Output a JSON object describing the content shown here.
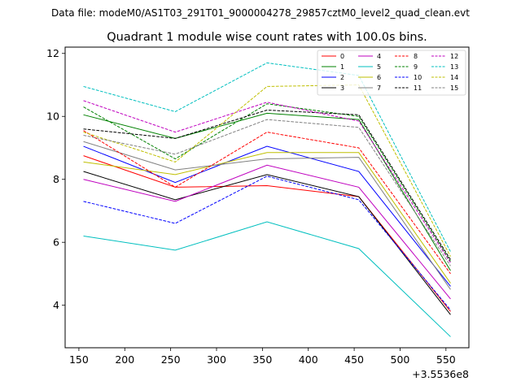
{
  "figure": {
    "suptitle": "Data file: modeM0/AS1T03_291T01_9000004278_29857cztM0_level2_quad_clean.evt"
  },
  "chart_data": {
    "type": "line",
    "title": "Quadrant 1 module wise count rates with 100.0s bins.",
    "xlabel": "",
    "ylabel": "",
    "x_offset_label": "+3.5536e8",
    "x": [
      155,
      255,
      355,
      455,
      555
    ],
    "xlim": [
      135,
      575
    ],
    "ylim": [
      2.65,
      12.2
    ],
    "xticks": [
      150,
      200,
      250,
      300,
      350,
      400,
      450,
      500,
      550
    ],
    "yticks": [
      4,
      6,
      8,
      10,
      12
    ],
    "grid": false,
    "legend_position": "top-right",
    "legend_columns": 4,
    "series": [
      {
        "name": "0",
        "color": "#ff0000",
        "dash": "solid",
        "values": [
          8.75,
          7.75,
          7.8,
          7.45,
          3.8
        ]
      },
      {
        "name": "1",
        "color": "#008000",
        "dash": "solid",
        "values": [
          10.05,
          9.3,
          10.1,
          9.9,
          5.1
        ]
      },
      {
        "name": "2",
        "color": "#0000ff",
        "dash": "solid",
        "values": [
          9.05,
          7.9,
          9.05,
          8.25,
          4.6
        ]
      },
      {
        "name": "3",
        "color": "#000000",
        "dash": "solid",
        "values": [
          8.25,
          7.35,
          8.15,
          7.45,
          3.7
        ]
      },
      {
        "name": "4",
        "color": "#bf00bf",
        "dash": "solid",
        "values": [
          8.0,
          7.3,
          8.45,
          7.75,
          4.2
        ]
      },
      {
        "name": "5",
        "color": "#00bfbf",
        "dash": "solid",
        "values": [
          6.2,
          5.75,
          6.65,
          5.8,
          3.0
        ]
      },
      {
        "name": "6",
        "color": "#bfbf00",
        "dash": "solid",
        "values": [
          8.55,
          8.15,
          8.85,
          8.85,
          4.7
        ]
      },
      {
        "name": "7",
        "color": "#808080",
        "dash": "solid",
        "values": [
          9.2,
          8.3,
          8.65,
          8.7,
          4.5
        ]
      },
      {
        "name": "8",
        "color": "#ff0000",
        "dash": "dashed",
        "values": [
          9.55,
          7.75,
          9.5,
          9.0,
          5.0
        ]
      },
      {
        "name": "9",
        "color": "#008000",
        "dash": "dashed",
        "values": [
          10.3,
          8.65,
          10.4,
          10.0,
          5.4
        ]
      },
      {
        "name": "10",
        "color": "#0000ff",
        "dash": "dashed",
        "values": [
          7.3,
          6.6,
          8.1,
          7.35,
          3.85
        ]
      },
      {
        "name": "11",
        "color": "#000000",
        "dash": "dashed",
        "values": [
          9.6,
          9.3,
          10.2,
          10.05,
          5.45
        ]
      },
      {
        "name": "12",
        "color": "#bf00bf",
        "dash": "dashed",
        "values": [
          10.5,
          9.5,
          10.45,
          9.85,
          5.35
        ]
      },
      {
        "name": "13",
        "color": "#00bfbf",
        "dash": "dashed",
        "values": [
          10.95,
          10.15,
          11.7,
          11.3,
          5.7
        ]
      },
      {
        "name": "14",
        "color": "#bfbf00",
        "dash": "dashed",
        "values": [
          9.5,
          8.55,
          10.95,
          11.0,
          5.55
        ]
      },
      {
        "name": "15",
        "color": "#808080",
        "dash": "dashed",
        "values": [
          9.4,
          8.8,
          9.9,
          9.65,
          5.25
        ]
      }
    ]
  }
}
